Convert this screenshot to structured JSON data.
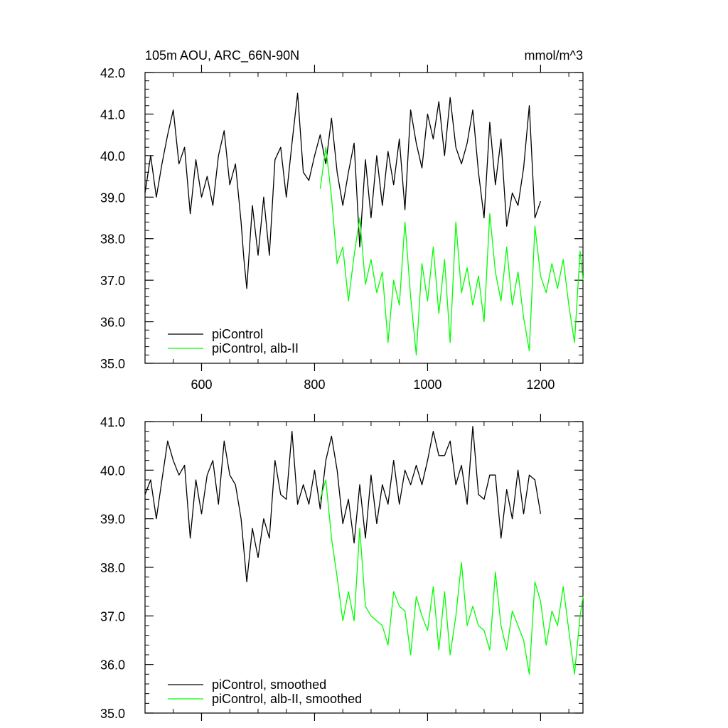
{
  "chart_data": [
    {
      "type": "line",
      "title": "105m AOU, ARC_66N-90N",
      "units": "mmol/m^3",
      "xlim": [
        500,
        1275
      ],
      "ylim": [
        35.0,
        42.0
      ],
      "xticks": [
        600,
        800,
        1000,
        1200
      ],
      "xtick_labels": [
        "600",
        "800",
        "1000",
        "1200"
      ],
      "yticks": [
        35.0,
        36.0,
        37.0,
        38.0,
        39.0,
        40.0,
        41.0,
        42.0
      ],
      "ytick_labels": [
        "35.0",
        "36.0",
        "37.0",
        "38.0",
        "39.0",
        "40.0",
        "41.0",
        "42.0"
      ],
      "legend_position": "bottom-left",
      "series": [
        {
          "name": "piControl",
          "color": "#000000",
          "x": [
            500,
            510,
            520,
            530,
            540,
            550,
            560,
            570,
            580,
            590,
            600,
            610,
            620,
            630,
            640,
            650,
            660,
            670,
            675,
            680,
            690,
            700,
            710,
            720,
            730,
            740,
            750,
            760,
            770,
            780,
            790,
            800,
            810,
            820,
            830,
            840,
            850,
            860,
            870,
            880,
            890,
            900,
            910,
            920,
            930,
            940,
            950,
            960,
            970,
            980,
            990,
            1000,
            1010,
            1020,
            1030,
            1040,
            1050,
            1060,
            1070,
            1080,
            1090,
            1100,
            1110,
            1120,
            1130,
            1140,
            1150,
            1160,
            1170,
            1180,
            1190,
            1200
          ],
          "y": [
            39.1,
            40.0,
            39.0,
            39.8,
            40.5,
            41.1,
            39.8,
            40.2,
            38.6,
            39.9,
            39.0,
            39.5,
            38.8,
            40.0,
            40.6,
            39.3,
            39.8,
            38.4,
            37.5,
            36.8,
            38.8,
            37.6,
            39.0,
            37.6,
            39.9,
            40.2,
            39.0,
            40.3,
            41.5,
            39.6,
            39.4,
            40.0,
            40.5,
            39.8,
            40.9,
            39.6,
            38.8,
            39.6,
            40.3,
            37.8,
            39.9,
            38.5,
            40.0,
            38.8,
            40.1,
            39.3,
            40.4,
            38.7,
            41.1,
            40.3,
            39.7,
            41.0,
            40.4,
            41.3,
            40.0,
            41.4,
            40.2,
            39.8,
            40.3,
            41.1,
            39.6,
            38.5,
            40.8,
            39.3,
            40.4,
            38.3,
            39.1,
            38.8,
            39.7,
            41.2,
            38.5,
            38.9
          ]
        },
        {
          "name": "piControl, alb-II",
          "color": "#00ff00",
          "x": [
            810,
            820,
            830,
            840,
            850,
            860,
            870,
            880,
            890,
            900,
            910,
            920,
            930,
            940,
            950,
            960,
            970,
            980,
            990,
            1000,
            1010,
            1020,
            1030,
            1040,
            1050,
            1060,
            1070,
            1080,
            1090,
            1100,
            1110,
            1120,
            1130,
            1140,
            1150,
            1160,
            1170,
            1180,
            1190,
            1200,
            1210,
            1220,
            1230,
            1240,
            1250,
            1260,
            1270,
            1275
          ],
          "y": [
            39.2,
            40.2,
            39.0,
            37.4,
            37.8,
            36.5,
            37.6,
            38.5,
            36.9,
            37.5,
            36.7,
            37.2,
            35.5,
            37.0,
            36.4,
            38.4,
            36.6,
            35.2,
            37.4,
            36.5,
            37.8,
            36.2,
            37.5,
            35.5,
            38.4,
            36.7,
            37.3,
            36.4,
            37.1,
            36.0,
            38.6,
            37.2,
            36.5,
            37.8,
            36.4,
            37.2,
            36.1,
            35.3,
            38.3,
            37.1,
            36.7,
            37.4,
            36.8,
            37.5,
            36.4,
            35.5,
            37.7,
            37.0
          ]
        }
      ]
    },
    {
      "type": "line",
      "xlim": [
        500,
        1275
      ],
      "ylim": [
        35.0,
        41.0
      ],
      "xticks": [
        600,
        800,
        1000,
        1200
      ],
      "yticks": [
        35.0,
        36.0,
        37.0,
        38.0,
        39.0,
        40.0,
        41.0
      ],
      "ytick_labels": [
        "35.0",
        "36.0",
        "37.0",
        "38.0",
        "39.0",
        "40.0",
        "41.0"
      ],
      "legend_position": "bottom-left",
      "series": [
        {
          "name": "piControl, smoothed",
          "color": "#000000",
          "x": [
            500,
            510,
            520,
            530,
            540,
            550,
            560,
            570,
            580,
            590,
            600,
            610,
            620,
            630,
            640,
            650,
            660,
            670,
            680,
            690,
            700,
            710,
            720,
            730,
            740,
            750,
            760,
            770,
            780,
            790,
            800,
            810,
            820,
            830,
            840,
            850,
            860,
            870,
            880,
            890,
            900,
            910,
            920,
            930,
            940,
            950,
            960,
            970,
            980,
            990,
            1000,
            1010,
            1020,
            1030,
            1040,
            1050,
            1060,
            1070,
            1080,
            1090,
            1100,
            1110,
            1120,
            1130,
            1140,
            1150,
            1160,
            1170,
            1180,
            1190,
            1200
          ],
          "y": [
            39.5,
            39.8,
            39.0,
            39.8,
            40.6,
            40.2,
            39.9,
            40.1,
            38.6,
            39.8,
            39.1,
            39.9,
            40.2,
            39.3,
            40.6,
            39.9,
            39.7,
            39.0,
            37.7,
            38.8,
            38.2,
            39.0,
            38.6,
            40.2,
            39.5,
            39.4,
            40.8,
            39.3,
            39.7,
            39.3,
            40.0,
            39.2,
            40.2,
            40.7,
            40.0,
            38.9,
            39.4,
            38.5,
            39.7,
            38.6,
            39.9,
            38.9,
            39.7,
            39.3,
            40.2,
            39.3,
            40.0,
            39.7,
            40.1,
            39.7,
            40.2,
            40.8,
            40.3,
            40.3,
            40.6,
            39.7,
            40.1,
            39.3,
            40.9,
            39.5,
            39.4,
            39.9,
            39.9,
            38.6,
            39.6,
            39.0,
            40.0,
            39.1,
            39.9,
            39.8,
            39.1
          ]
        },
        {
          "name": "piControl, alb-II, smoothed",
          "color": "#00ff00",
          "x": [
            810,
            820,
            830,
            840,
            850,
            860,
            870,
            880,
            890,
            900,
            910,
            920,
            930,
            940,
            950,
            960,
            970,
            980,
            990,
            1000,
            1010,
            1020,
            1030,
            1040,
            1050,
            1060,
            1070,
            1080,
            1090,
            1100,
            1110,
            1120,
            1130,
            1140,
            1150,
            1160,
            1170,
            1180,
            1190,
            1200,
            1210,
            1220,
            1230,
            1240,
            1250,
            1260,
            1270,
            1275
          ],
          "y": [
            39.4,
            39.8,
            38.6,
            37.8,
            36.9,
            37.5,
            36.9,
            38.8,
            37.2,
            37.0,
            36.9,
            36.8,
            36.4,
            37.5,
            37.2,
            37.1,
            36.2,
            37.4,
            37.0,
            36.7,
            37.6,
            36.3,
            37.5,
            36.2,
            37.0,
            38.1,
            36.8,
            37.2,
            36.8,
            36.7,
            36.3,
            37.9,
            36.8,
            36.3,
            37.1,
            36.8,
            36.5,
            35.8,
            37.7,
            37.3,
            36.4,
            37.1,
            36.8,
            37.6,
            36.7,
            35.8,
            37.0,
            37.4
          ]
        }
      ]
    }
  ]
}
